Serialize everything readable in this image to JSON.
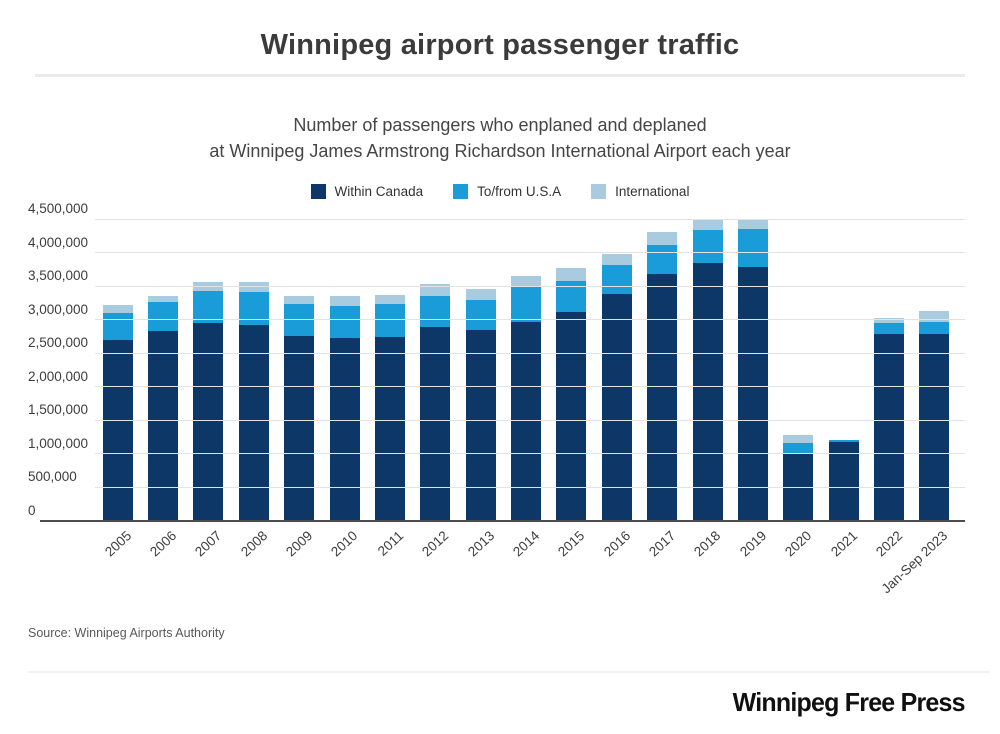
{
  "page": {
    "title": "Winnipeg airport passenger traffic",
    "subtitle_line1": "Number of passengers who enplaned and deplaned",
    "subtitle_line2": "at Winnipeg James Armstrong Richardson International Airport each year",
    "source": "Source: Winnipeg Airports Authority",
    "logo": "Winnipeg Free Press"
  },
  "legend": [
    {
      "label": "Within Canada",
      "color": "#0d3766"
    },
    {
      "label": "To/from U.S.A",
      "color": "#1a9cd8"
    },
    {
      "label": "International",
      "color": "#a9cbdf"
    }
  ],
  "chart_data": {
    "type": "bar",
    "stacked": true,
    "title": "Winnipeg airport passenger traffic",
    "subtitle": "Number of passengers who enplaned and deplaned at Winnipeg James Armstrong Richardson International Airport each year",
    "xlabel": "",
    "ylabel": "",
    "grid": true,
    "legend_position": "top",
    "ylim": [
      0,
      4500000
    ],
    "ytick_interval": 500000,
    "ytick_labels": [
      "0",
      "500,000",
      "1,000,000",
      "1,500,000",
      "2,000,000",
      "2,500,000",
      "3,000,000",
      "3,500,000",
      "4,000,000",
      "4,500,000"
    ],
    "categories": [
      "2005",
      "2006",
      "2007",
      "2008",
      "2009",
      "2010",
      "2011",
      "2012",
      "2013",
      "2014",
      "2015",
      "2016",
      "2017",
      "2018",
      "2019",
      "2020",
      "2021",
      "2022",
      "Jan-Sep 2023"
    ],
    "series": [
      {
        "name": "Within Canada",
        "color": "#0d3766",
        "values": [
          2690000,
          2830000,
          2950000,
          2920000,
          2760000,
          2720000,
          2740000,
          2890000,
          2840000,
          2960000,
          3110000,
          3380000,
          3680000,
          3840000,
          3780000,
          1020000,
          1170000,
          2780000,
          2780000
        ]
      },
      {
        "name": "To/from U.S.A",
        "color": "#1a9cd8",
        "values": [
          410000,
          440000,
          480000,
          500000,
          480000,
          480000,
          490000,
          470000,
          460000,
          530000,
          470000,
          440000,
          440000,
          490000,
          570000,
          140000,
          30000,
          170000,
          180000
        ]
      },
      {
        "name": "International",
        "color": "#a9cbdf",
        "values": [
          120000,
          90000,
          130000,
          140000,
          120000,
          150000,
          140000,
          170000,
          160000,
          160000,
          190000,
          160000,
          190000,
          150000,
          130000,
          120000,
          10000,
          70000,
          170000
        ]
      }
    ],
    "totals": [
      3220000,
      3360000,
      3560000,
      3560000,
      3360000,
      3350000,
      3370000,
      3530000,
      3460000,
      3650000,
      3770000,
      3980000,
      4310000,
      4480000,
      4480000,
      1280000,
      1210000,
      3020000,
      3130000
    ]
  }
}
